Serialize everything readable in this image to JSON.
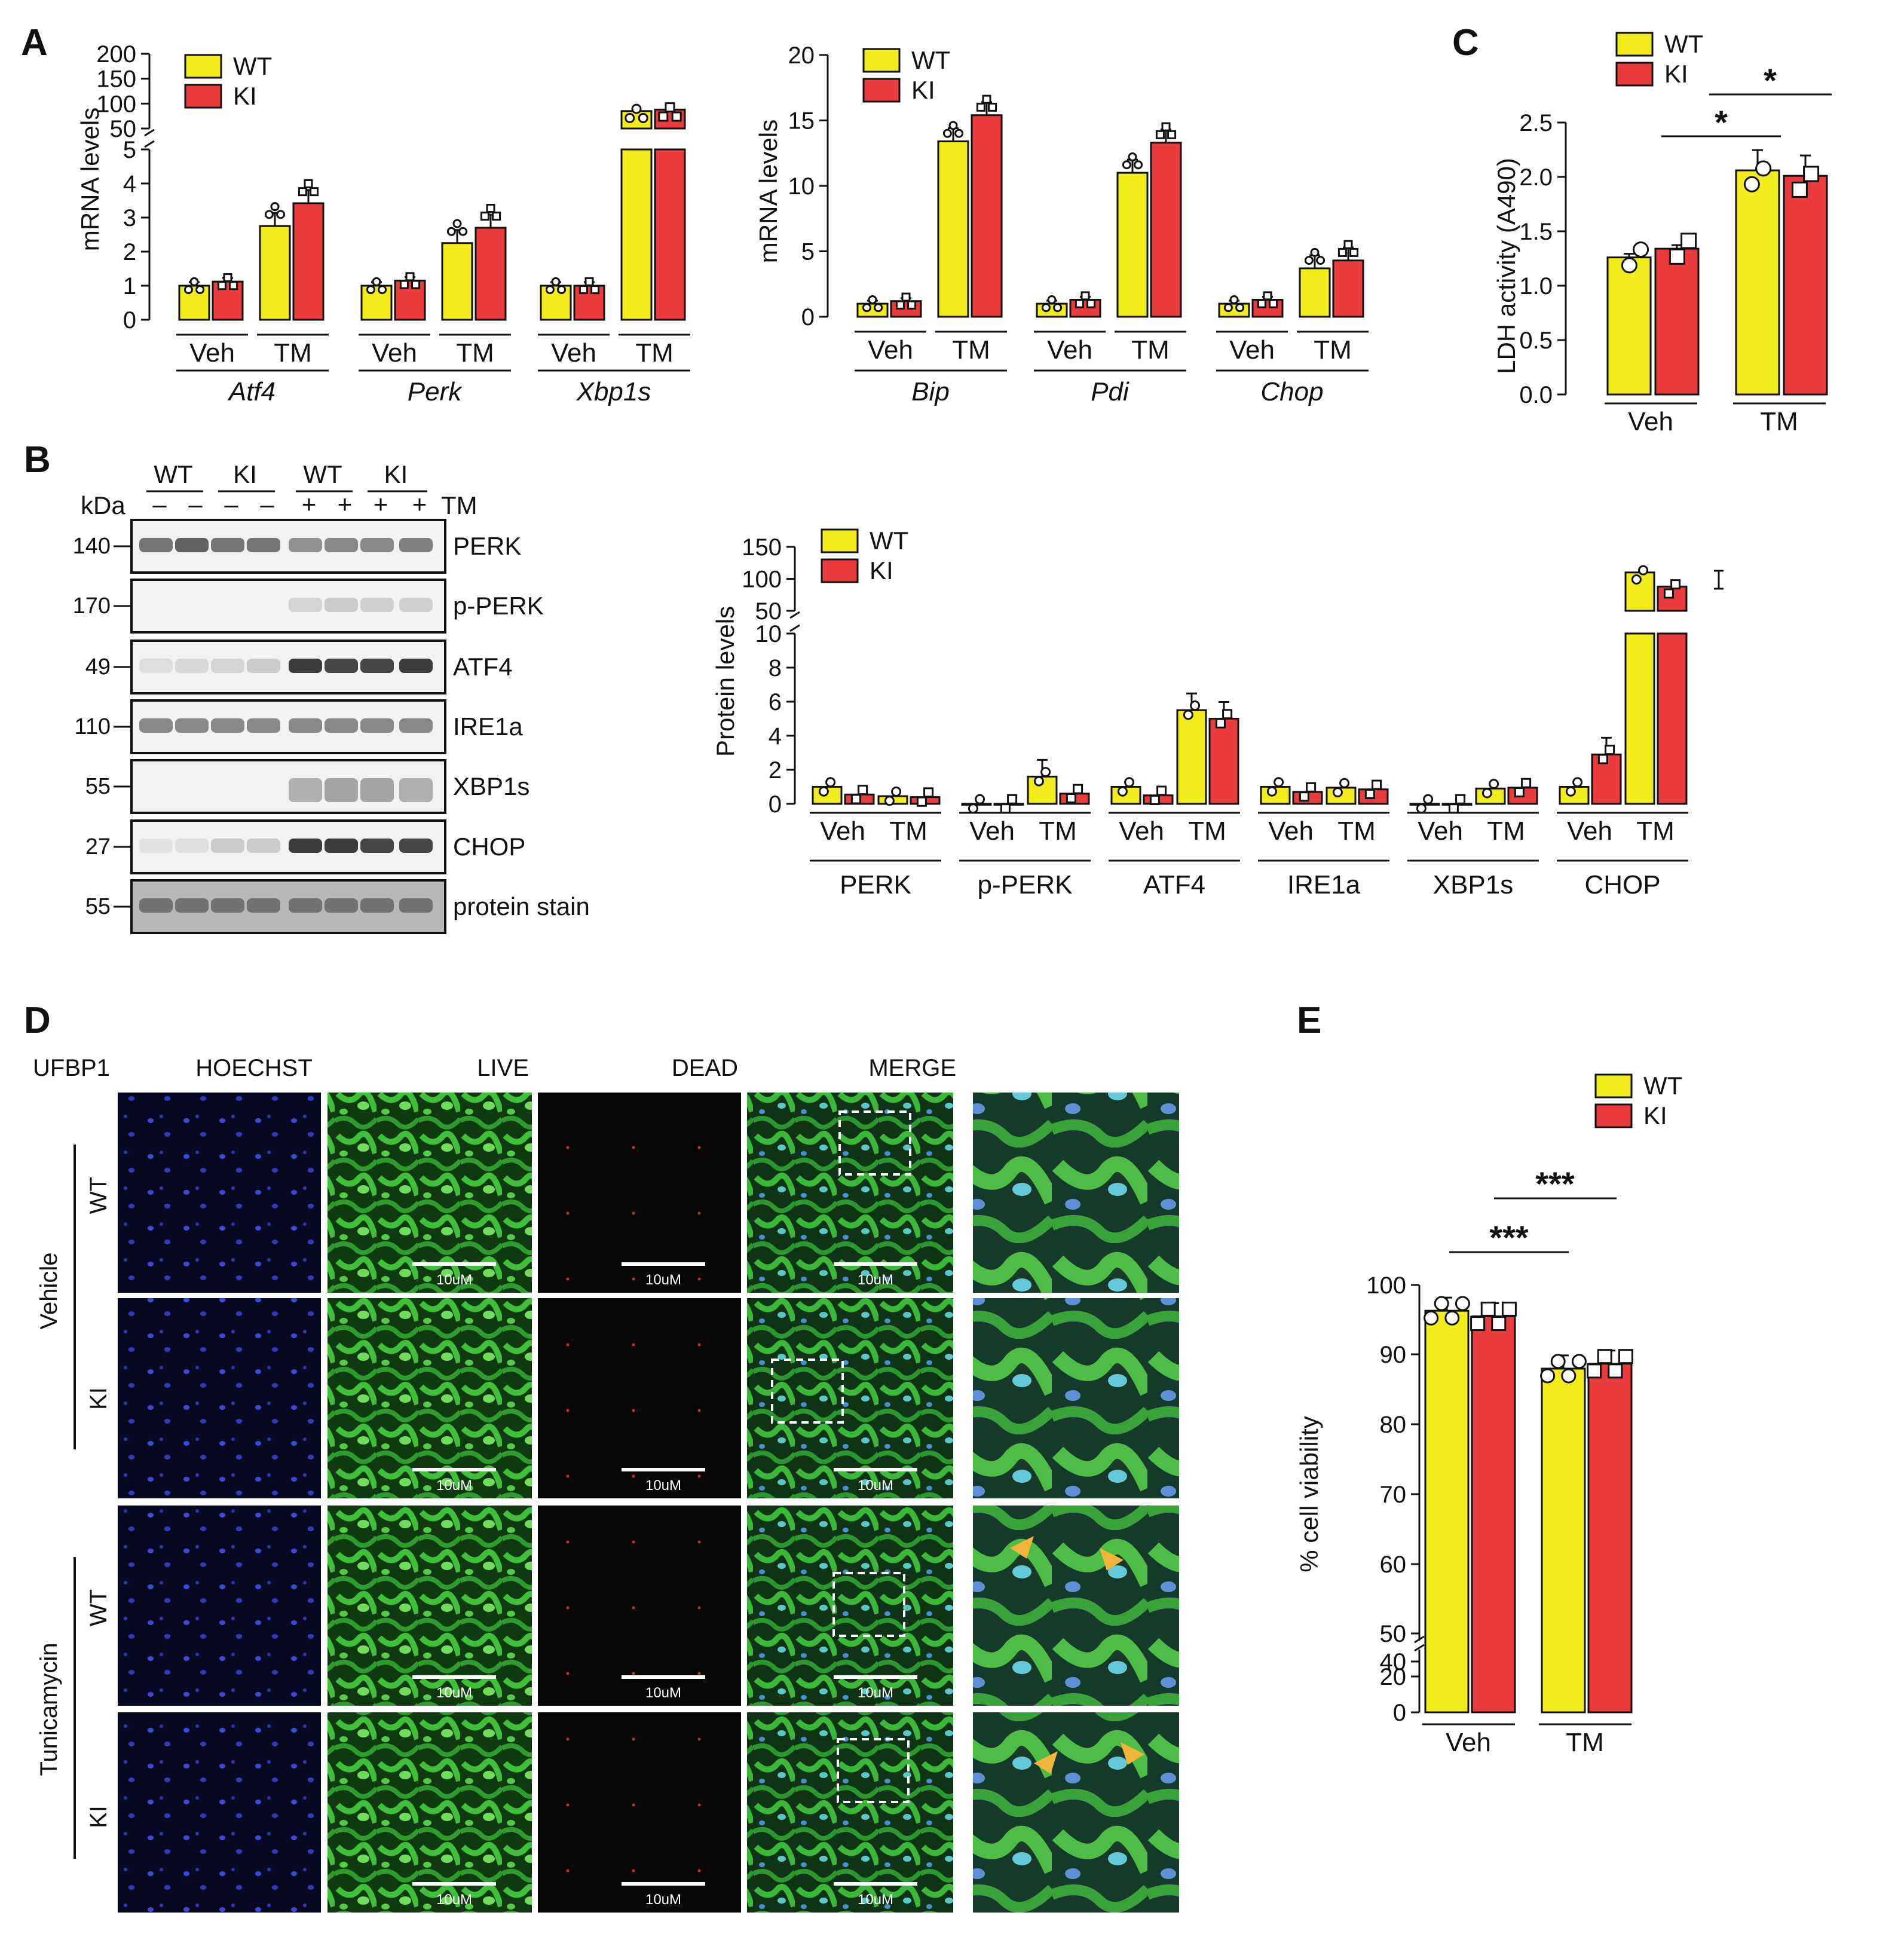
{
  "colors": {
    "wt": "#f2ec1c",
    "ki": "#ea3b3d",
    "bar_edge": "#111111",
    "arrow": "#f3b43a"
  },
  "panel_labels": {
    "a": "A",
    "b": "B",
    "c": "C",
    "d": "D",
    "e": "E"
  },
  "legend": {
    "wt": "WT",
    "ki": "KI"
  },
  "chart_data": [
    {
      "id": "A1",
      "type": "bar",
      "ylabel": "mRNA levels",
      "y_lower_ticks": [
        "0",
        "1",
        "2",
        "3",
        "4",
        "5"
      ],
      "y_upper_ticks": [
        "50",
        "100",
        "150",
        "200"
      ],
      "groups": [
        "Atf4",
        "Perk",
        "Xbp1s"
      ],
      "conditions": [
        "Veh",
        "TM"
      ],
      "series": [
        {
          "name": "WT",
          "values": [
            1.0,
            2.75,
            1.0,
            2.25,
            1.0,
            85
          ]
        },
        {
          "name": "KI",
          "values": [
            1.12,
            3.42,
            1.15,
            2.7,
            1.0,
            88
          ]
        }
      ]
    },
    {
      "id": "A2",
      "type": "bar",
      "ylabel": "mRNA levels",
      "ylim": [
        0,
        20
      ],
      "y_ticks": [
        "0",
        "5",
        "10",
        "15",
        "20"
      ],
      "groups": [
        "Bip",
        "Pdi",
        "Chop"
      ],
      "conditions": [
        "Veh",
        "TM"
      ],
      "series": [
        {
          "name": "WT",
          "values": [
            1.0,
            13.4,
            1.0,
            11.0,
            1.0,
            3.7
          ]
        },
        {
          "name": "KI",
          "values": [
            1.2,
            15.4,
            1.3,
            13.3,
            1.3,
            4.3
          ]
        }
      ]
    },
    {
      "id": "C",
      "type": "bar",
      "ylabel": "LDH activity (A490)",
      "ylim": [
        0,
        2.5
      ],
      "y_ticks": [
        "0.0",
        "0.5",
        "1.0",
        "1.5",
        "2.0",
        "2.5"
      ],
      "categories": [
        "Veh",
        "TM"
      ],
      "series": [
        {
          "name": "WT",
          "values": [
            1.26,
            2.06
          ]
        },
        {
          "name": "KI",
          "values": [
            1.34,
            2.01
          ]
        }
      ],
      "significance": [
        "*",
        "*"
      ]
    },
    {
      "id": "B2",
      "type": "bar",
      "ylabel": "Protein levels",
      "y_lower_ticks": [
        "0",
        "2",
        "4",
        "6",
        "8",
        "10"
      ],
      "y_upper_ticks": [
        "50",
        "100",
        "150"
      ],
      "groups": [
        "PERK",
        "p-PERK",
        "ATF4",
        "IRE1a",
        "XBP1s",
        "CHOP"
      ],
      "conditions": [
        "Veh",
        "TM"
      ],
      "series": [
        {
          "name": "WT",
          "values": [
            1.0,
            0.45,
            0.0,
            1.6,
            1.0,
            5.5,
            1.0,
            0.95,
            0.0,
            0.9,
            1.0,
            110
          ]
        },
        {
          "name": "KI",
          "values": [
            0.55,
            0.4,
            0.0,
            0.6,
            0.5,
            5.0,
            0.7,
            0.85,
            0.0,
            0.95,
            2.9,
            88
          ]
        }
      ]
    },
    {
      "id": "E",
      "type": "bar",
      "ylabel": "% cell viability",
      "y_ticks": [
        "0",
        "20",
        "40",
        "50",
        "60",
        "70",
        "80",
        "90",
        "100"
      ],
      "categories": [
        "Veh",
        "TM"
      ],
      "series": [
        {
          "name": "WT",
          "values": [
            96.3,
            88.0
          ]
        },
        {
          "name": "KI",
          "values": [
            95.5,
            88.7
          ]
        }
      ],
      "significance": [
        "***",
        "***"
      ]
    }
  ],
  "western": {
    "genotypes": [
      "WT",
      "KI",
      "WT",
      "KI"
    ],
    "kda_label": "kDa",
    "tm_label": "TM",
    "tm_signs": [
      "–",
      "–",
      "–",
      "–",
      "+",
      "+",
      "+",
      "+"
    ],
    "blots": [
      {
        "mw": "140",
        "name": "PERK"
      },
      {
        "mw": "170",
        "name": "p-PERK"
      },
      {
        "mw": "49",
        "name": "ATF4"
      },
      {
        "mw": "110",
        "name": "IRE1a"
      },
      {
        "mw": "55",
        "name": "XBP1s"
      },
      {
        "mw": "27",
        "name": "CHOP"
      },
      {
        "mw": "55",
        "name": "protein stain"
      }
    ]
  },
  "micro": {
    "row_header": "UFBP1",
    "columns": [
      "HOECHST",
      "LIVE",
      "DEAD",
      "MERGE"
    ],
    "conditions": [
      "Vehicle",
      "Tunicamycin"
    ],
    "genotypes": [
      "WT",
      "KI",
      "WT",
      "KI"
    ],
    "scale_bar": "10uM"
  }
}
